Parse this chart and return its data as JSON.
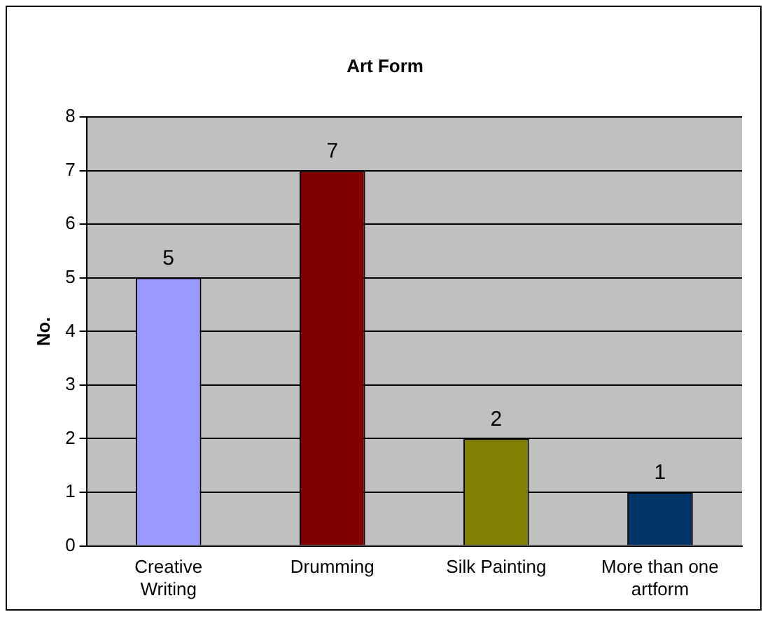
{
  "chart_data": {
    "type": "bar",
    "title": "Art Form",
    "ylabel": "No.",
    "categories": [
      "Creative Writing",
      "Drumming",
      "Silk Painting",
      "More than one artform"
    ],
    "values": [
      5,
      7,
      2,
      1
    ],
    "colors": [
      "#9999ff",
      "#800000",
      "#808000",
      "#003366"
    ],
    "ylim": [
      0,
      8
    ],
    "yticks": [
      0,
      1,
      2,
      3,
      4,
      5,
      6,
      7,
      8
    ],
    "grid": "y",
    "data_labels": true,
    "legend": false
  }
}
